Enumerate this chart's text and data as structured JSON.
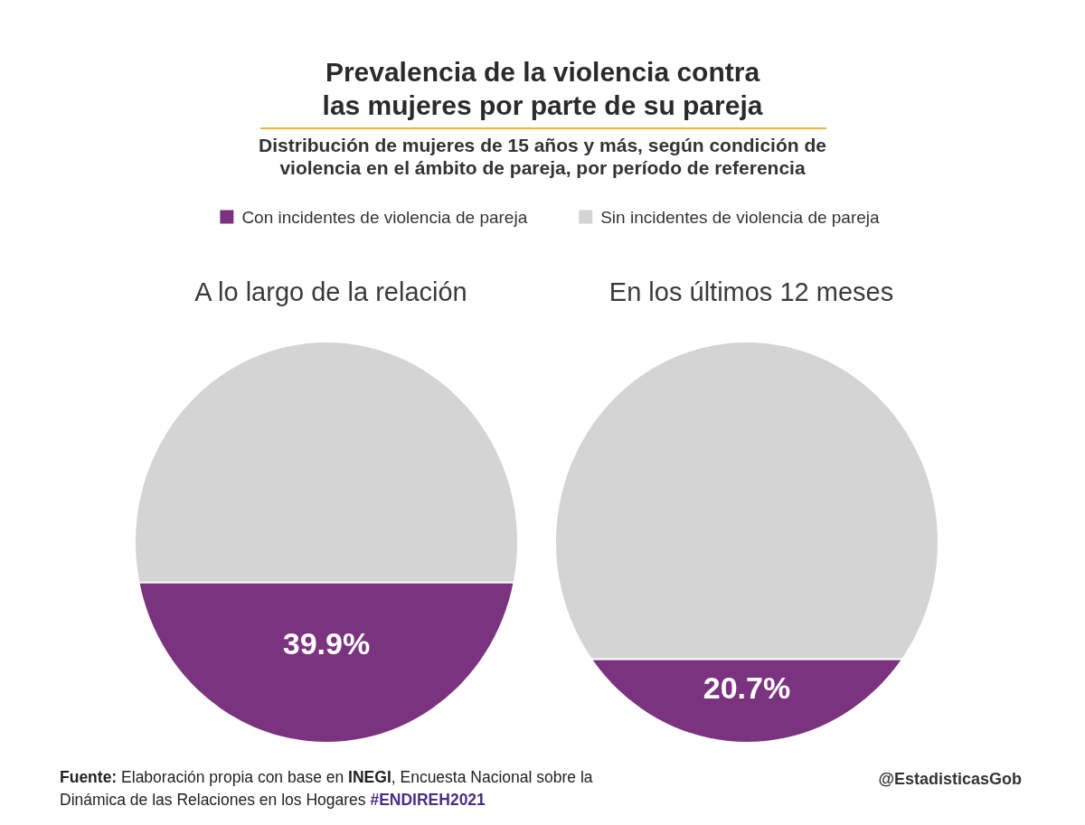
{
  "chart_data": {
    "type": "bar",
    "stacked": true,
    "title": "Prevalencia de la violencia contra las mujeres por parte de su pareja",
    "subtitle": "Distribución de mujeres de 15 años y más, según condición de violencia en el ámbito de pareja, por período de referencia",
    "categories": [
      "A lo largo de la relación",
      "En los últimos 12 meses"
    ],
    "series": [
      {
        "name": "Con incidentes de violencia de pareja",
        "color": "#7b3380",
        "values": [
          39.9,
          20.7
        ],
        "value_labels": [
          "39.9%",
          "20.7%"
        ]
      },
      {
        "name": "Sin incidentes de violencia de pareja",
        "color": "#d4d4d4",
        "values": [
          60.1,
          79.3
        ]
      }
    ],
    "ylim": [
      0,
      100
    ],
    "legend": "top",
    "tick_labels": "x",
    "annotations": [
      "Fuente: Elaboración propia con base en INEGI, Encuesta Nacional sobre la Dinámica de las Relaciones en los Hogares #ENDIREH2021",
      "@EstadisticasGob"
    ]
  }
}
